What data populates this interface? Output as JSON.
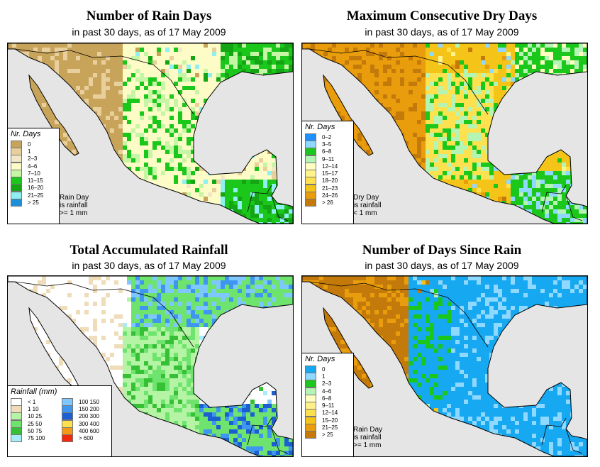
{
  "panels": [
    {
      "title": "Number of Rain Days",
      "subtitle": "in past 30 days, as of  17 May 2009",
      "legend_title": "Nr. Days",
      "legend": [
        {
          "label": "0",
          "color": "#c7a45a"
        },
        {
          "label": "1",
          "color": "#e8cf9c"
        },
        {
          "label": "2–3",
          "color": "#f2e7c4"
        },
        {
          "label": "4–6",
          "color": "#fdfcc6"
        },
        {
          "label": "7–10",
          "color": "#c6f6a5"
        },
        {
          "label": "11–15",
          "color": "#1bc71b"
        },
        {
          "label": "16–20",
          "color": "#14a514"
        },
        {
          "label": "21–25",
          "color": "#8ef0f0"
        },
        {
          "label": "> 25",
          "color": "#1e90d8"
        }
      ],
      "note": [
        "Rain Day",
        "is rainfall",
        ">= 1 mm"
      ]
    },
    {
      "title": "Maximum Consecutive Dry Days",
      "subtitle": "in past 30 days, as of  17 May 2009",
      "legend_title": "Nr. Days",
      "legend": [
        {
          "label": "0–2",
          "color": "#1e90ff"
        },
        {
          "label": "3–5",
          "color": "#8fd8ff"
        },
        {
          "label": "6–8",
          "color": "#1bc71b"
        },
        {
          "label": "9–11",
          "color": "#b4f4b4"
        },
        {
          "label": "12–14",
          "color": "#fffec0"
        },
        {
          "label": "15–17",
          "color": "#fff38c"
        },
        {
          "label": "18–20",
          "color": "#fde14e"
        },
        {
          "label": "21–23",
          "color": "#f5c418"
        },
        {
          "label": "24–26",
          "color": "#e99d0c"
        },
        {
          "label": "> 26",
          "color": "#c47a0a"
        }
      ],
      "note": [
        "Dry Day",
        "is rainfall",
        "< 1 mm"
      ]
    },
    {
      "title": "Total Accumulated Rainfall",
      "subtitle": "in past 30 days, as of  17 May 2009",
      "legend_title": "Rainfall (mm)",
      "legend": [
        {
          "label": "< 1",
          "color": "#ffffff"
        },
        {
          "label": "1    10",
          "color": "#efdcb9"
        },
        {
          "label": "10    25",
          "color": "#b4f4a4"
        },
        {
          "label": "25    50",
          "color": "#6ee46e"
        },
        {
          "label": "50    75",
          "color": "#36c036"
        },
        {
          "label": "75  100",
          "color": "#a8ecf8"
        },
        {
          "label": "100  150",
          "color": "#7ec8ff"
        },
        {
          "label": "150  200",
          "color": "#3e96f0"
        },
        {
          "label": "200  300",
          "color": "#1b5fd0"
        },
        {
          "label": "300  400",
          "color": "#fde050"
        },
        {
          "label": "400  600",
          "color": "#f59a18"
        },
        {
          "label": "> 600",
          "color": "#f02a0a"
        }
      ],
      "note": []
    },
    {
      "title": "Number of Days Since Rain",
      "subtitle": "in past 30 days, as of  17 May 2009",
      "legend_title": "Nr. Days",
      "legend": [
        {
          "label": "0",
          "color": "#16a8f0"
        },
        {
          "label": "1",
          "color": "#8fd8ff"
        },
        {
          "label": "2–3",
          "color": "#1bc71b"
        },
        {
          "label": "4–6",
          "color": "#b4f4b4"
        },
        {
          "label": "6–8",
          "color": "#fffec0"
        },
        {
          "label": "9–11",
          "color": "#fff08a"
        },
        {
          "label": "12–14",
          "color": "#fde050"
        },
        {
          "label": "15–20",
          "color": "#f5c418"
        },
        {
          "label": "21–25",
          "color": "#e99d0c"
        },
        {
          "label": "> 25",
          "color": "#c47a0a"
        }
      ],
      "note": [
        "Rain Day",
        "is rainfall",
        ">= 1 mm"
      ]
    }
  ],
  "colors": {
    "ocean": "#e5e5e5",
    "border": "#000000"
  }
}
